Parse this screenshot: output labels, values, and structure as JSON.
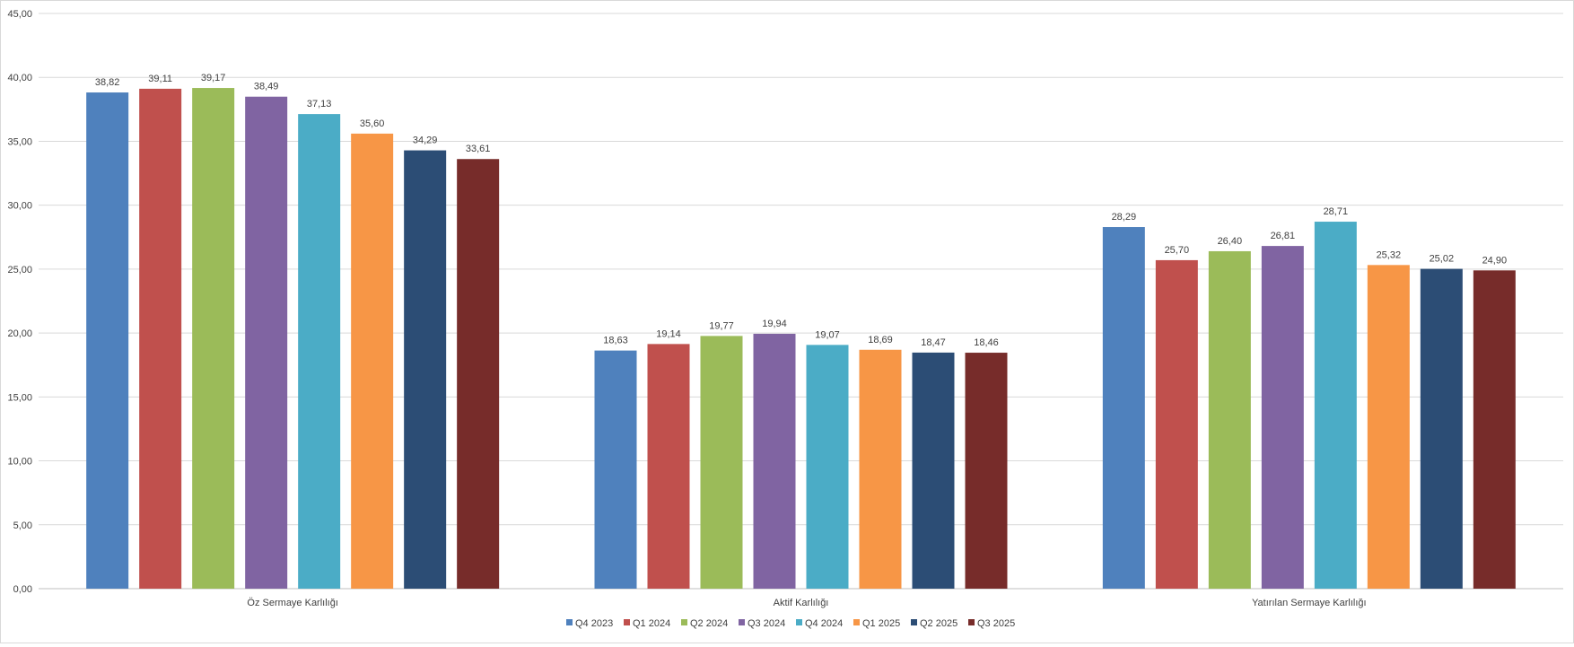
{
  "chart_data": {
    "type": "bar",
    "categories": [
      "Öz Sermaye Karlılığı",
      "Aktif Karlılığı",
      "Yatırılan Sermaye Karlılığı"
    ],
    "series": [
      {
        "name": "Q4 2023",
        "color": "#4f81bd",
        "values": [
          38.82,
          18.63,
          28.29
        ],
        "labels": [
          "38,82",
          "18,63",
          "28,29"
        ]
      },
      {
        "name": "Q1 2024",
        "color": "#c0504d",
        "values": [
          39.11,
          19.14,
          25.7
        ],
        "labels": [
          "39,11",
          "19,14",
          "25,70"
        ]
      },
      {
        "name": "Q2 2024",
        "color": "#9bbb59",
        "values": [
          39.17,
          19.77,
          26.4
        ],
        "labels": [
          "39,17",
          "19,77",
          "26,40"
        ]
      },
      {
        "name": "Q3 2024",
        "color": "#8064a2",
        "values": [
          38.49,
          19.94,
          26.81
        ],
        "labels": [
          "38,49",
          "19,94",
          "26,81"
        ]
      },
      {
        "name": "Q4 2024",
        "color": "#4bacc6",
        "values": [
          37.13,
          19.07,
          28.71
        ],
        "labels": [
          "37,13",
          "19,07",
          "28,71"
        ]
      },
      {
        "name": "Q1 2025",
        "color": "#f79646",
        "values": [
          35.6,
          18.69,
          25.32
        ],
        "labels": [
          "35,60",
          "18,69",
          "25,32"
        ]
      },
      {
        "name": "Q2 2025",
        "color": "#2c4d75",
        "values": [
          34.29,
          18.47,
          25.02
        ],
        "labels": [
          "34,29",
          "18,47",
          "25,02"
        ]
      },
      {
        "name": "Q3 2025",
        "color": "#772c2a",
        "values": [
          33.61,
          18.46,
          24.9
        ],
        "labels": [
          "33,61",
          "18,46",
          "24,90"
        ]
      }
    ],
    "yticks": [
      "0,00",
      "5,00",
      "10,00",
      "15,00",
      "20,00",
      "25,00",
      "30,00",
      "35,00",
      "40,00",
      "45,00"
    ],
    "ylim": [
      0,
      45
    ],
    "grid": true,
    "legend_position": "bottom",
    "title": "",
    "xlabel": "",
    "ylabel": ""
  }
}
